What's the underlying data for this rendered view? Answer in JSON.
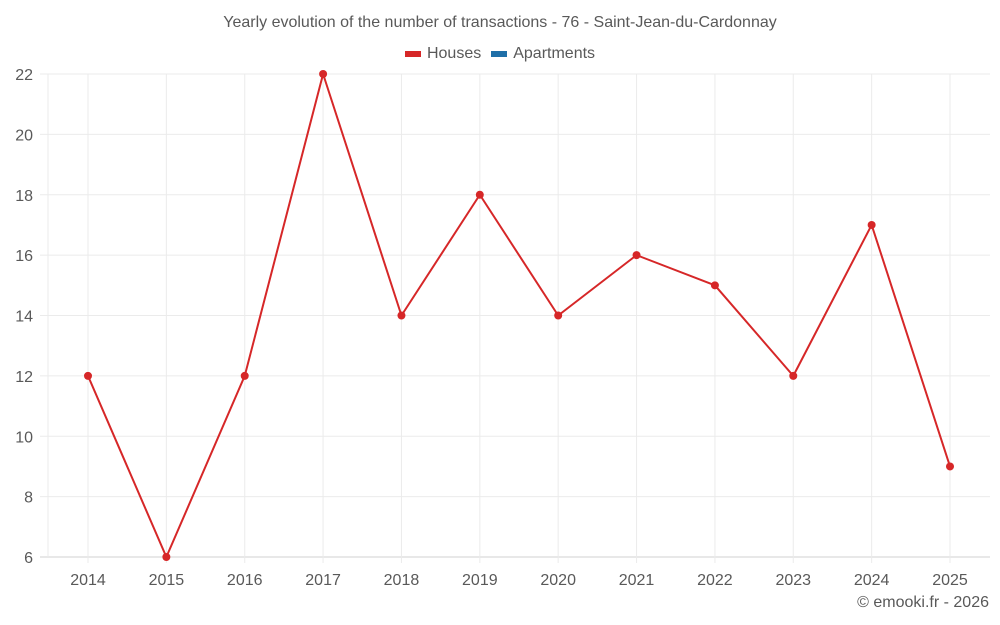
{
  "title": "Yearly evolution of the number of transactions - 76 - Saint-Jean-du-Cardonnay",
  "legend": [
    {
      "label": "Houses",
      "color": "#d62728"
    },
    {
      "label": "Apartments",
      "color": "#1f6fa8"
    }
  ],
  "footer": "© emooki.fr - 2026",
  "colors": {
    "grid": "#ebebeb",
    "axis": "#d0d0d0",
    "text": "#595959"
  },
  "chart_data": {
    "type": "line",
    "title": "Yearly evolution of the number of transactions - 76 - Saint-Jean-du-Cardonnay",
    "xlabel": "",
    "ylabel": "",
    "categories": [
      "2014",
      "2015",
      "2016",
      "2017",
      "2018",
      "2019",
      "2020",
      "2021",
      "2022",
      "2023",
      "2024",
      "2025"
    ],
    "series": [
      {
        "name": "Houses",
        "color": "#d62728",
        "values": [
          12,
          6,
          12,
          22,
          14,
          18,
          14,
          16,
          15,
          12,
          17,
          9
        ]
      },
      {
        "name": "Apartments",
        "color": "#1f6fa8",
        "values": []
      }
    ],
    "ylim": [
      6,
      22
    ],
    "yticks": [
      6,
      8,
      10,
      12,
      14,
      16,
      18,
      20,
      22
    ],
    "grid": true,
    "legend_position": "top"
  }
}
